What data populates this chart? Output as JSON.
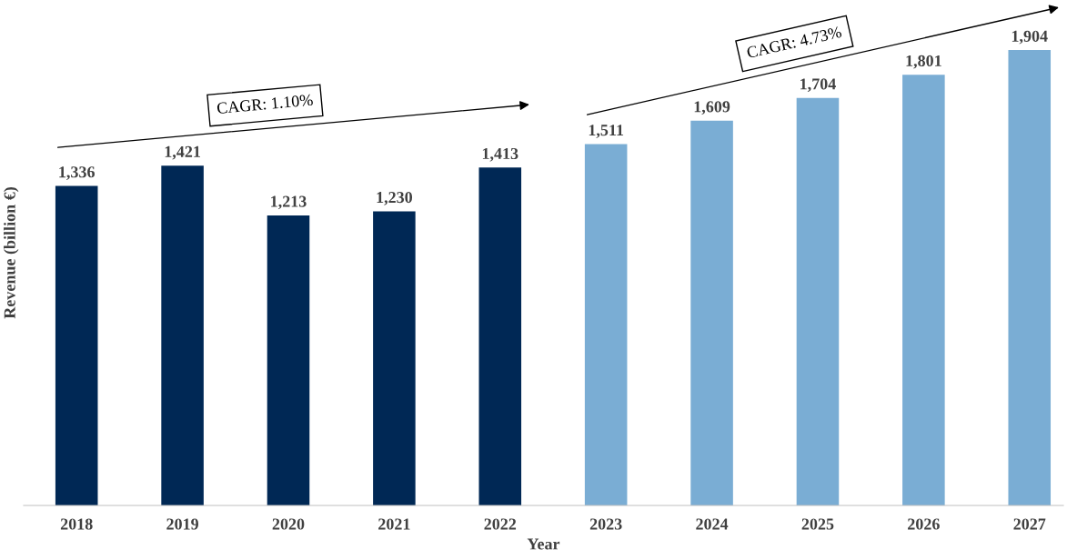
{
  "chart_data": {
    "type": "bar",
    "xlabel": "Year",
    "ylabel": "Revenue (billion €)",
    "categories": [
      "2018",
      "2019",
      "2020",
      "2021",
      "2022",
      "2023",
      "2024",
      "2025",
      "2026",
      "2027"
    ],
    "series": [
      {
        "color": "#002855",
        "values": [
          1336,
          1421,
          1213,
          1230,
          1413,
          null,
          null,
          null,
          null,
          null
        ],
        "value_labels": [
          "1,336",
          "1,421",
          "1,213",
          "1,230",
          "1,413",
          null,
          null,
          null,
          null,
          null
        ]
      },
      {
        "color": "#7aadd4",
        "values": [
          null,
          null,
          null,
          null,
          null,
          1511,
          1609,
          1704,
          1801,
          1904
        ],
        "value_labels": [
          null,
          null,
          null,
          null,
          null,
          "1,511",
          "1,609",
          "1,704",
          "1,801",
          "1,904"
        ]
      }
    ],
    "legend": false,
    "grid": false,
    "annotations": [
      "CAGR: 1.10%",
      "CAGR: 4.73%"
    ]
  }
}
